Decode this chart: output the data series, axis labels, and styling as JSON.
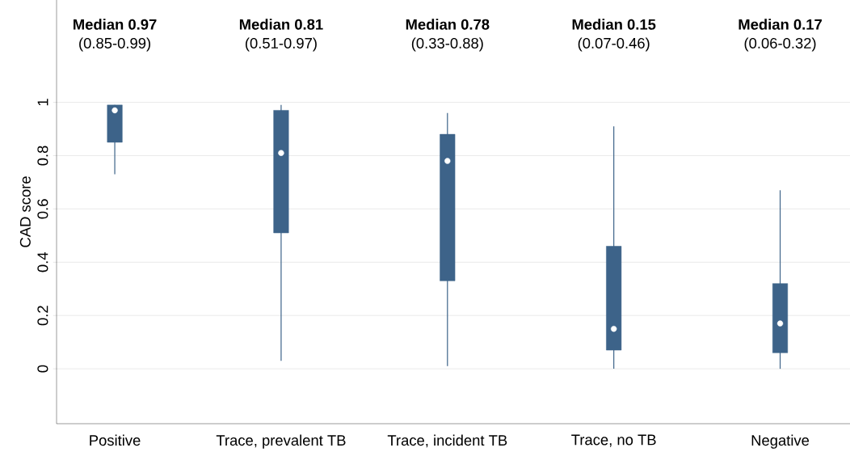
{
  "chart_data": {
    "type": "box",
    "ylabel": "CAD score",
    "categories": [
      "Positive",
      "Trace, prevalent TB",
      "Trace, incident TB",
      "Trace, no TB",
      "Negative"
    ],
    "boxes": [
      {
        "low": 0.73,
        "q1": 0.85,
        "median": 0.97,
        "q3": 0.99,
        "high": 0.99
      },
      {
        "low": 0.03,
        "q1": 0.51,
        "median": 0.81,
        "q3": 0.97,
        "high": 0.99
      },
      {
        "low": 0.01,
        "q1": 0.33,
        "median": 0.78,
        "q3": 0.88,
        "high": 0.96
      },
      {
        "low": 0.0,
        "q1": 0.07,
        "median": 0.15,
        "q3": 0.46,
        "high": 0.91
      },
      {
        "low": 0.0,
        "q1": 0.06,
        "median": 0.17,
        "q3": 0.32,
        "high": 0.67
      }
    ],
    "color": "#3d6389",
    "annotations": [
      "Median 0.97",
      "(0.85-0.99)",
      "Median 0.81",
      "(0.51-0.97)",
      "Median 0.78",
      "(0.33-0.88)",
      "Median 0.15",
      "(0.07-0.46)",
      "Median 0.17",
      "(0.06-0.32)"
    ],
    "ylim": [
      -0.206,
      1.384
    ],
    "yticks": [
      0,
      0.2,
      0.4,
      0.6,
      0.8,
      1
    ],
    "grid": "y"
  }
}
